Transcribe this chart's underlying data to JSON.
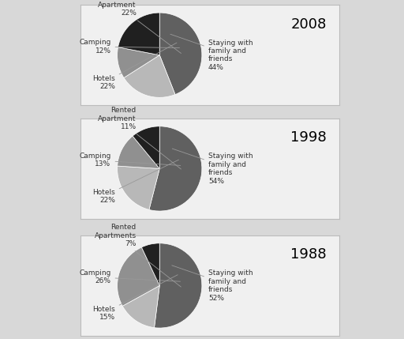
{
  "charts": [
    {
      "year": "1988",
      "labels": [
        "Staying with\nfamily and\nfriends",
        "Hotels",
        "Camping",
        "Rented\nApartments"
      ],
      "pcts": [
        "52%",
        "15%",
        "26%",
        "7%"
      ],
      "values": [
        52,
        15,
        26,
        7
      ],
      "colors": [
        "#606060",
        "#b8b8b8",
        "#909090",
        "#202020"
      ],
      "startangle": 90
    },
    {
      "year": "1998",
      "labels": [
        "Staying with\nfamily and\nfriends",
        "Hotels",
        "Camping",
        "Rented\nApartment"
      ],
      "pcts": [
        "54%",
        "22%",
        "13%",
        "11%"
      ],
      "values": [
        54,
        22,
        13,
        11
      ],
      "colors": [
        "#606060",
        "#b8b8b8",
        "#909090",
        "#202020"
      ],
      "startangle": 90
    },
    {
      "year": "2008",
      "labels": [
        "Staying with\nfamily and\nfriends",
        "Hotels",
        "Camping",
        "Rented\nApartment"
      ],
      "pcts": [
        "44%",
        "22%",
        "12%",
        "22%"
      ],
      "values": [
        44,
        22,
        12,
        22
      ],
      "colors": [
        "#606060",
        "#b8b8b8",
        "#909090",
        "#202020"
      ],
      "startangle": 90
    }
  ],
  "background_color": "#d8d8d8",
  "box_facecolor": "#f0f0f0",
  "box_edgecolor": "#bbbbbb",
  "label_fontsize": 6.5,
  "title_fontsize": 13
}
